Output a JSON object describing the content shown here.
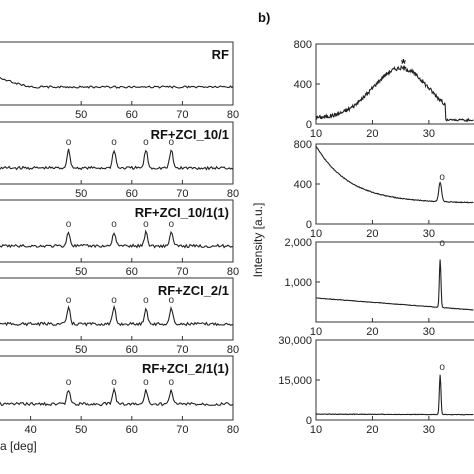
{
  "panel_label": "b)",
  "chart_data": [
    {
      "type": "line",
      "label": "RF",
      "xlim": [
        30,
        80
      ],
      "x_ticks": [
        50,
        60,
        70,
        80
      ],
      "peaks": [],
      "peak_marker": "o"
    },
    {
      "type": "line",
      "label": "RF+ZCI_10/1",
      "xlim": [
        30,
        80
      ],
      "x_ticks": [
        50,
        60,
        70,
        80
      ],
      "peaks": [
        47.5,
        56.5,
        62.8,
        67.8
      ],
      "peak_marker": "o"
    },
    {
      "type": "line",
      "label": "RF+ZCI_10/1(1)",
      "xlim": [
        30,
        80
      ],
      "x_ticks": [
        50,
        60,
        70,
        80
      ],
      "peaks": [
        47.5,
        56.5,
        62.8,
        67.8
      ],
      "peak_marker": "o"
    },
    {
      "type": "line",
      "label": "RF+ZCI_2/1",
      "xlim": [
        30,
        80
      ],
      "x_ticks": [
        50,
        60,
        70,
        80
      ],
      "peaks": [
        47.5,
        56.5,
        62.8,
        67.8
      ],
      "peak_marker": "o"
    },
    {
      "type": "line",
      "label": "RF+ZCI_2/1(1)",
      "xlim": [
        30,
        80
      ],
      "x_ticks": [
        40,
        50,
        60,
        70,
        80
      ],
      "peaks": [
        47.5,
        56.5,
        62.8,
        67.8
      ],
      "peak_marker": "o",
      "xlabel": "a [deg]"
    },
    {
      "type": "line",
      "xlim": [
        10,
        38
      ],
      "ylim": [
        0,
        800
      ],
      "x_ticks": [
        10,
        20,
        30
      ],
      "y_ticks": [
        {
          "v": 0,
          "t": "0"
        },
        {
          "v": 400,
          "t": "400"
        },
        {
          "v": 800,
          "t": "800"
        }
      ],
      "shape": "hump",
      "hump_center": 25,
      "hump_peak": 500,
      "star_marker": "*",
      "star_x": 25.5
    },
    {
      "type": "line",
      "xlim": [
        10,
        38
      ],
      "ylim": [
        0,
        800
      ],
      "x_ticks": [
        10,
        20,
        30
      ],
      "y_ticks": [
        {
          "v": 0,
          "t": "0"
        },
        {
          "v": 400,
          "t": "400"
        },
        {
          "v": 800,
          "t": "800"
        }
      ],
      "shape": "decay",
      "start": 780,
      "end": 210,
      "peak_x": 32,
      "peak_height": 190,
      "peak_marker": "o"
    },
    {
      "type": "line",
      "xlim": [
        10,
        38
      ],
      "ylim": [
        0,
        2000
      ],
      "x_ticks": [
        10,
        20,
        30
      ],
      "y_ticks": [
        {
          "v": 1000,
          "t": "1,000"
        },
        {
          "v": 2000,
          "t": "2,000"
        }
      ],
      "shape": "flat",
      "start": 600,
      "end": 300,
      "peak_x": 32,
      "peak_height": 1200,
      "peak_marker": "o"
    },
    {
      "type": "line",
      "xlim": [
        10,
        38
      ],
      "ylim": [
        0,
        30000
      ],
      "x_ticks": [
        10,
        20,
        30
      ],
      "y_ticks": [
        {
          "v": 0,
          "t": "0"
        },
        {
          "v": 15000,
          "t": "15,000"
        },
        {
          "v": 30000,
          "t": "30,000"
        }
      ],
      "shape": "flat",
      "start": 2200,
      "end": 2000,
      "peak_x": 32,
      "peak_height": 15000,
      "peak_marker": "o",
      "ylabel": "Intensity [a.u.]"
    }
  ]
}
